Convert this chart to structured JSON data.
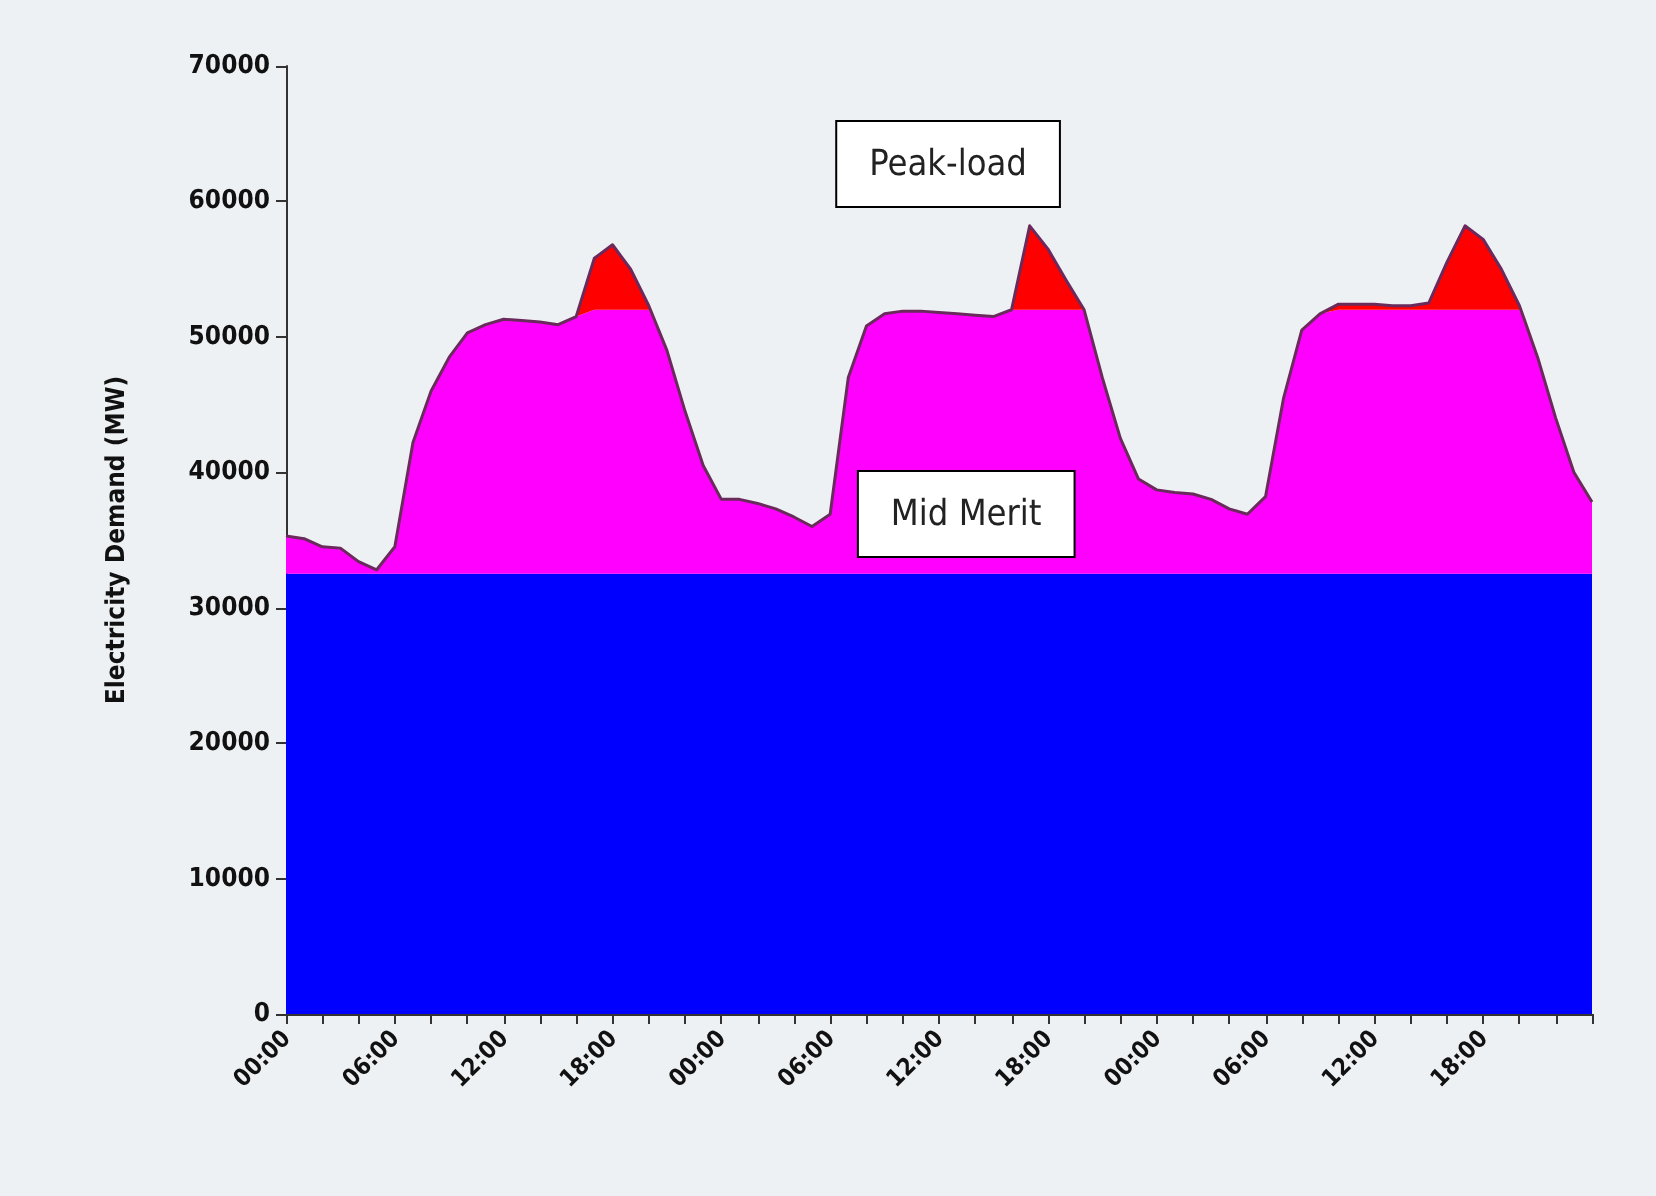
{
  "chart_data": {
    "type": "area",
    "stacked": true,
    "ylabel": "Electricity Demand (MW)",
    "categories": [
      "00:00",
      null,
      null,
      null,
      null,
      null,
      "06:00",
      null,
      null,
      null,
      null,
      null,
      "12:00",
      null,
      null,
      null,
      null,
      null,
      "18:00",
      null,
      null,
      null,
      null,
      null,
      "00:00",
      null,
      null,
      null,
      null,
      null,
      "06:00",
      null,
      null,
      null,
      null,
      null,
      "12:00",
      null,
      null,
      null,
      null,
      null,
      "18:00",
      null,
      null,
      null,
      null,
      null,
      "00:00",
      null,
      null,
      null,
      null,
      null,
      "06:00",
      null,
      null,
      null,
      null,
      null,
      "12:00",
      null,
      null,
      null,
      null,
      null,
      "18:00",
      null,
      null,
      null,
      null,
      null,
      null
    ],
    "series": [
      {
        "color": "#0000ff",
        "values": [
          32500,
          32500,
          32500,
          32500,
          32500,
          32500,
          32500,
          32500,
          32500,
          32500,
          32500,
          32500,
          32500,
          32500,
          32500,
          32500,
          32500,
          32500,
          32500,
          32500,
          32500,
          32500,
          32500,
          32500,
          32500,
          32500,
          32500,
          32500,
          32500,
          32500,
          32500,
          32500,
          32500,
          32500,
          32500,
          32500,
          32500,
          32500,
          32500,
          32500,
          32500,
          32500,
          32500,
          32500,
          32500,
          32500,
          32500,
          32500,
          32500,
          32500,
          32500,
          32500,
          32500,
          32500,
          32500,
          32500,
          32500,
          32500,
          32500,
          32500,
          32500,
          32500,
          32500,
          32500,
          32500,
          32500,
          32500,
          32500,
          32500,
          32500,
          32500,
          32500,
          32500
        ]
      },
      {
        "name": "Mid Merit",
        "color": "#ff00ff",
        "values": [
          2800,
          2600,
          2000,
          1900,
          900,
          300,
          2000,
          9700,
          13500,
          16000,
          17800,
          18400,
          18800,
          18700,
          18600,
          18400,
          19000,
          19500,
          19500,
          19500,
          19500,
          16500,
          12000,
          8000,
          5500,
          5500,
          5200,
          4800,
          4200,
          3500,
          4400,
          14500,
          18300,
          19200,
          19400,
          19400,
          19300,
          19200,
          19100,
          19000,
          19500,
          19500,
          19500,
          19500,
          19500,
          14500,
          10000,
          7000,
          6200,
          6000,
          5900,
          5500,
          4800,
          4400,
          5700,
          13000,
          18000,
          19200,
          19500,
          19500,
          19500,
          19500,
          19500,
          19500,
          19500,
          19500,
          19500,
          19500,
          19500,
          16000,
          11500,
          7500,
          5300
        ]
      },
      {
        "name": "Peak-load",
        "color": "#ff0000",
        "values": [
          0,
          0,
          0,
          0,
          0,
          0,
          0,
          0,
          0,
          0,
          0,
          0,
          0,
          0,
          0,
          0,
          0,
          3800,
          4800,
          3000,
          300,
          0,
          0,
          0,
          0,
          0,
          0,
          0,
          0,
          0,
          0,
          0,
          0,
          0,
          0,
          0,
          0,
          0,
          0,
          0,
          0,
          6200,
          4500,
          2200,
          0,
          0,
          0,
          0,
          0,
          0,
          0,
          0,
          0,
          0,
          0,
          0,
          0,
          0,
          400,
          400,
          400,
          300,
          300,
          500,
          3500,
          6200,
          5200,
          3000,
          300,
          0,
          0,
          0,
          0
        ]
      }
    ],
    "ylim": [
      0,
      70000
    ],
    "yticks": [
      0,
      10000,
      20000,
      30000,
      40000,
      50000,
      60000,
      70000
    ],
    "grid": false,
    "legend": false
  }
}
